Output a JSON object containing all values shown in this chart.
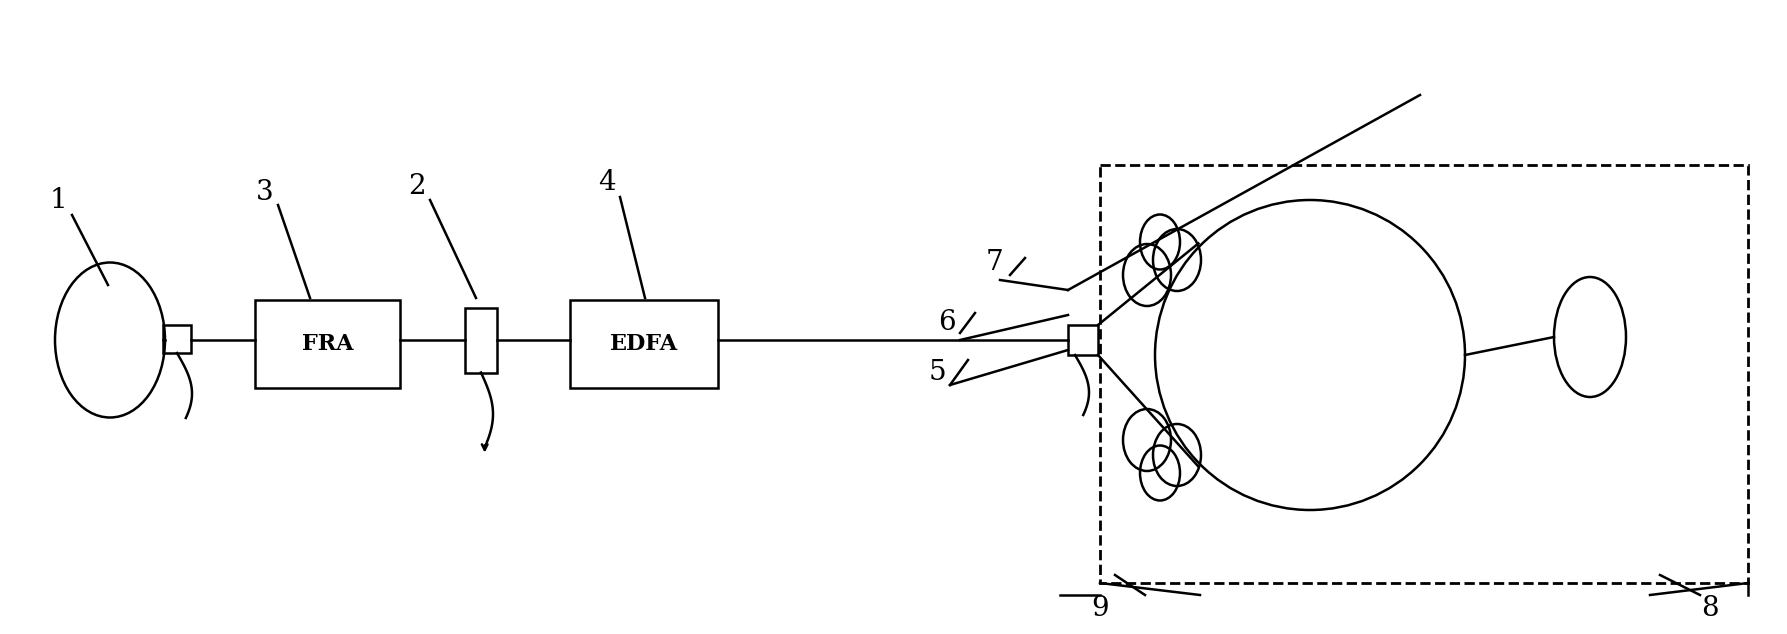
{
  "bg_color": "#ffffff",
  "line_color": "#000000",
  "fig_width": 17.87,
  "fig_height": 6.34,
  "dpi": 100
}
